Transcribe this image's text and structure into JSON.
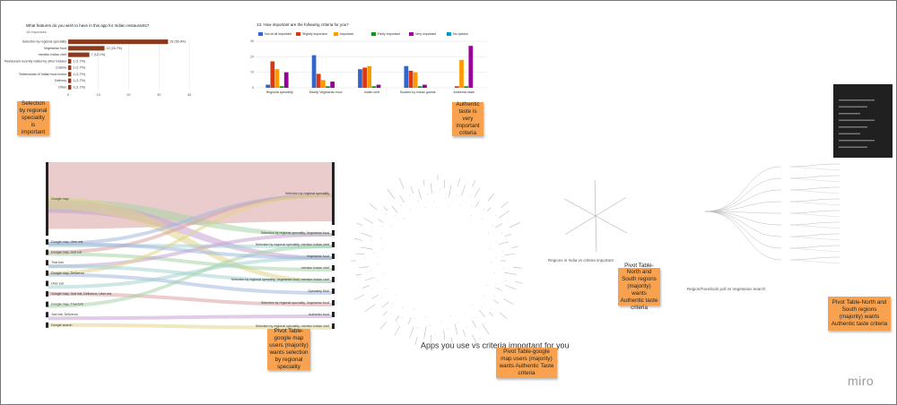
{
  "chart_data": [
    {
      "type": "barh",
      "title": "What features do you wish to have in this app for Indian restaurants?",
      "subtitle": "15 responses",
      "categories": [
        "Selection by regional speciality",
        "Vegetarian food",
        "mention Indian chef",
        "Restaurant recently visited by other Indians",
        "Cuisine",
        "Testimonials of Indian food lovers",
        "Delivery",
        "Other"
      ],
      "values": [
        33,
        12,
        7,
        1,
        1,
        1,
        1,
        1
      ],
      "value_labels": [
        "33 (56.9%)",
        "12 (20.7%)",
        "7 (12.1%)",
        "1 (1.7%)",
        "1 (1.7%)",
        "1 (1.7%)",
        "1 (1.7%)",
        "1 (1.7%)"
      ],
      "color": "#8b3a1e",
      "xlim": [
        0,
        40
      ],
      "xticks": [
        0,
        10,
        20,
        30,
        40
      ],
      "grid": true
    },
    {
      "type": "bar",
      "title": "13. How important are the following criteria for you?",
      "categories": [
        "Regional speciality",
        "Mostly Vegetarian food",
        "Indian chef",
        "Booked by Indian guests",
        "Authentic taste"
      ],
      "series": [
        {
          "name": "Not at all important",
          "color": "#3366cc",
          "values": [
            2,
            21,
            12,
            14,
            0
          ]
        },
        {
          "name": "Slightly important",
          "color": "#dc3912",
          "values": [
            17,
            9,
            13,
            11,
            1
          ]
        },
        {
          "name": "Important",
          "color": "#ff9900",
          "values": [
            12,
            5,
            14,
            10,
            18
          ]
        },
        {
          "name": "Fairly important",
          "color": "#109618",
          "values": [
            1,
            1,
            1,
            1,
            1
          ]
        },
        {
          "name": "Very important",
          "color": "#990099",
          "values": [
            10,
            4,
            2,
            2,
            27
          ]
        },
        {
          "name": "No opinion",
          "color": "#0099c6",
          "values": [
            0,
            0,
            0,
            0,
            0
          ]
        }
      ],
      "ylim": [
        0,
        30
      ],
      "yticks": [
        0,
        10,
        20,
        30
      ],
      "grid": true
    }
  ],
  "sticky_notes": [
    "Selection by regional speciality is important",
    "Authentic taste is very important criteria",
    "Pivot Table-google map users (majority) wants selection by regional speciality",
    "Pivot Table-google map users (majority) wants Authentic Taste criteria",
    "Pivot Table-North and South regions (majority) wants Authentic taste criteria",
    "Pivot Table-North and South regions (majority) wants Authentic taste criteria"
  ],
  "sankey": {
    "left_nodes": [
      "Google map",
      "Google map, Uber eat",
      "Google map, Just eat",
      "Thai fork",
      "Google map, Deliveroo",
      "Uber eat",
      "Google map, Just eat, Deliveroo, Uber eat",
      "Google map, Thai fork",
      "Just eat, Deliveroo",
      "Google search"
    ],
    "right_nodes": [
      "Selection by regional speciality",
      "Selection by regional speciality, Vegetarian food",
      "Selection by regional speciality, mention Indian chef",
      "Vegetarian food",
      "mention Indian chef",
      "Selection by regional speciality, Vegetarian food, mention Indian chef",
      "Speciality Dish",
      "Selection by regional speciality, Vegetarian food",
      "Authentic food",
      "Selection by regional speciality, mention Indian chef"
    ]
  },
  "captions": {
    "radial": "Apps you use vs criteria important for you",
    "regions": "Regions in India vs criteria important",
    "tree": "Region/Facebook poll vs Vegetarian Search"
  },
  "logo": "miro"
}
